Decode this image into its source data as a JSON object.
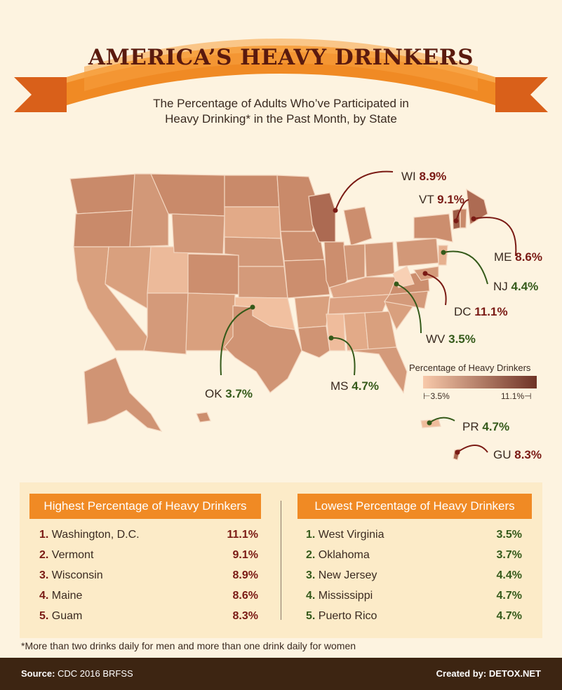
{
  "title": "AMERICA’S HEAVY DRINKERS",
  "subtitle_line1": "The Percentage of Adults Who’ve Participated in",
  "subtitle_line2": "Heavy Drinking* in the Past Month, by State",
  "colors": {
    "banner": "#f08a24",
    "high": "#7a1a14",
    "low": "#355a1a",
    "footer": "#3d2512"
  },
  "callouts": {
    "wi": {
      "label": "WI",
      "value": "8.9%"
    },
    "vt": {
      "label": "VT",
      "value": "9.1%"
    },
    "me": {
      "label": "ME",
      "value": "8.6%"
    },
    "nj": {
      "label": "NJ",
      "value": "4.4%"
    },
    "dc": {
      "label": "DC",
      "value": "11.1%"
    },
    "wv": {
      "label": "WV",
      "value": "3.5%"
    },
    "ok": {
      "label": "OK",
      "value": "3.7%"
    },
    "ms": {
      "label": "MS",
      "value": "4.7%"
    },
    "pr": {
      "label": "PR",
      "value": "4.7%"
    },
    "gu": {
      "label": "GU",
      "value": "8.3%"
    }
  },
  "legend": {
    "title": "Percentage of Heavy Drinkers",
    "min": "3.5%",
    "max": "11.1%"
  },
  "highest": {
    "header": "Highest Percentage of Heavy Drinkers",
    "rows": [
      {
        "rank": "1.",
        "name": "Washington, D.C.",
        "value": "11.1%"
      },
      {
        "rank": "2.",
        "name": "Vermont",
        "value": "9.1%"
      },
      {
        "rank": "3.",
        "name": "Wisconsin",
        "value": "8.9%"
      },
      {
        "rank": "4.",
        "name": "Maine",
        "value": "8.6%"
      },
      {
        "rank": "5.",
        "name": "Guam",
        "value": "8.3%"
      }
    ]
  },
  "lowest": {
    "header": "Lowest Percentage of Heavy Drinkers",
    "rows": [
      {
        "rank": "1.",
        "name": "West Virginia",
        "value": "3.5%"
      },
      {
        "rank": "2.",
        "name": "Oklahoma",
        "value": "3.7%"
      },
      {
        "rank": "3.",
        "name": "New Jersey",
        "value": "4.4%"
      },
      {
        "rank": "4.",
        "name": "Mississippi",
        "value": "4.7%"
      },
      {
        "rank": "5.",
        "name": "Puerto Rico",
        "value": "4.7%"
      }
    ]
  },
  "footnote": "*More than two drinks daily for men and more than one drink daily for women",
  "footer": {
    "source_label": "Source:",
    "source_value": "CDC 2016 BRFSS",
    "credit_label": "Created by:",
    "credit_value": "DETOX.NET"
  }
}
